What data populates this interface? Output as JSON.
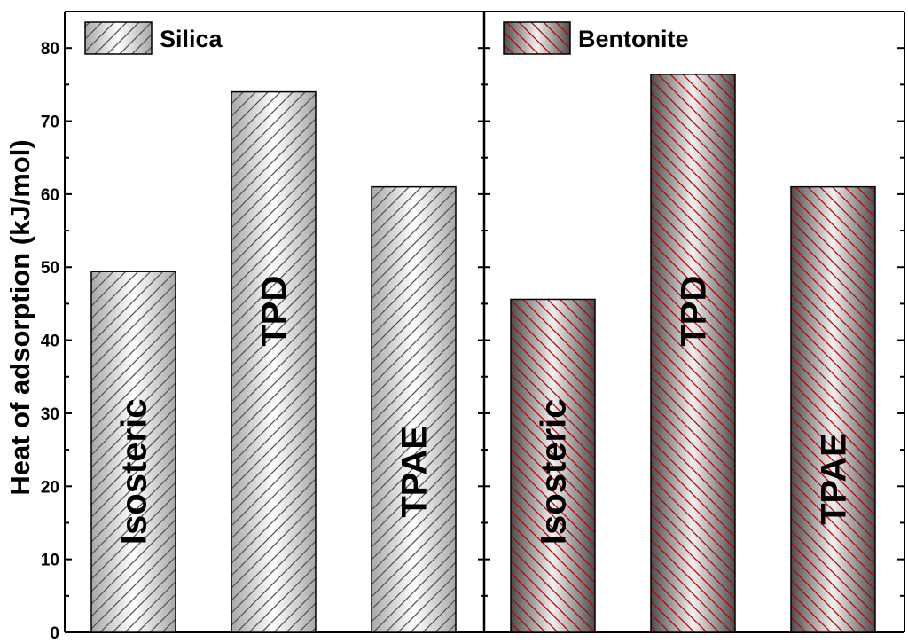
{
  "chart_data": {
    "type": "bar",
    "ylabel": "Heat of adsorption (kJ/mol)",
    "xlabel": "",
    "ylim": [
      0,
      85
    ],
    "yticks": [
      0,
      10,
      20,
      30,
      40,
      50,
      60,
      70,
      80
    ],
    "categories": [
      "Isosteric",
      "TPD",
      "TPAE"
    ],
    "series": [
      {
        "name": "Silica",
        "values": [
          49.4,
          74.0,
          61.0
        ],
        "hatch_color": "#555555",
        "fill_dark": "#a8a8a8",
        "fill_light": "#ffffff"
      },
      {
        "name": "Bentonite",
        "values": [
          45.6,
          76.4,
          61.0
        ],
        "hatch_color": "#c00000",
        "fill_dark": "#4a4a4a",
        "fill_light": "#f2f2f2"
      }
    ],
    "grid": false,
    "legend": "top-left of each panel"
  }
}
